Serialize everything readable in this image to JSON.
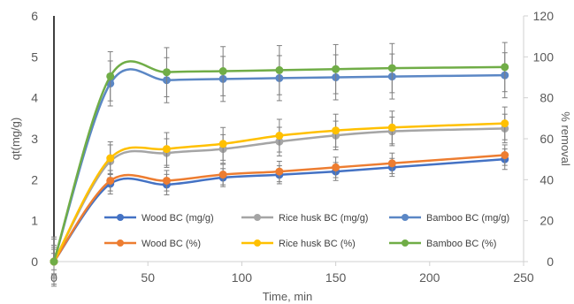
{
  "chart_data": {
    "type": "line",
    "title": "",
    "xlabel": "Time, min",
    "ylabel_left": "qt(mg/g)",
    "ylabel_right": "% removal",
    "x": [
      0,
      30,
      60,
      90,
      120,
      150,
      180,
      240
    ],
    "xlim": [
      0,
      250
    ],
    "xticks": [
      "0",
      "50",
      "100",
      "150",
      "200",
      "250"
    ],
    "ylim_left": [
      0,
      6
    ],
    "yticks_left": [
      "0",
      "1",
      "2",
      "3",
      "4",
      "5",
      "6"
    ],
    "ylim_right": [
      0,
      120
    ],
    "yticks_right": [
      "0",
      "20",
      "40",
      "60",
      "80",
      "100",
      "120"
    ],
    "grid": false,
    "legend_position": "bottom",
    "series": [
      {
        "name": "Wood BC (mg/g)",
        "axis": "left",
        "color": "#4472C4",
        "smooth": true,
        "values": [
          0,
          1.9,
          1.88,
          2.05,
          2.12,
          2.2,
          2.3,
          2.5
        ],
        "errors": [
          0.3,
          0.25,
          0.25,
          0.22,
          0.22,
          0.22,
          0.22,
          0.25
        ]
      },
      {
        "name": "Rice husk BC (mg/g)",
        "axis": "left",
        "color": "#A5A5A5",
        "smooth": true,
        "values": [
          0,
          2.45,
          2.65,
          2.75,
          2.93,
          3.08,
          3.18,
          3.25
        ],
        "errors": [
          0.4,
          0.4,
          0.35,
          0.35,
          0.35,
          0.35,
          0.35,
          0.35
        ]
      },
      {
        "name": "Bamboo BC (mg/g)",
        "axis": "left",
        "color": "#5B87C5",
        "smooth": true,
        "values": [
          0,
          4.35,
          4.43,
          4.46,
          4.48,
          4.5,
          4.52,
          4.55
        ],
        "errors": [
          0.6,
          0.55,
          0.55,
          0.55,
          0.55,
          0.55,
          0.55,
          0.55
        ]
      },
      {
        "name": "Wood BC (%)",
        "axis": "right",
        "color": "#ED7D31",
        "smooth": true,
        "values": [
          0,
          39.5,
          39.5,
          42.5,
          44,
          46,
          48,
          52
        ],
        "errors": [
          4,
          5,
          5,
          5,
          5,
          5,
          5,
          5
        ]
      },
      {
        "name": "Rice husk BC (%)",
        "axis": "right",
        "color": "#FFC000",
        "smooth": true,
        "values": [
          0,
          50.5,
          55,
          57.5,
          61.5,
          64,
          65.5,
          67.5
        ],
        "errors": [
          7,
          8,
          8,
          8,
          8,
          8,
          8,
          8
        ]
      },
      {
        "name": "Bamboo BC (%)",
        "axis": "right",
        "color": "#70AD47",
        "smooth": true,
        "values": [
          0,
          90.5,
          92.5,
          93,
          93.5,
          94,
          94.5,
          95
        ],
        "errors": [
          11,
          12,
          12,
          12,
          12,
          12,
          12,
          12
        ]
      }
    ]
  }
}
